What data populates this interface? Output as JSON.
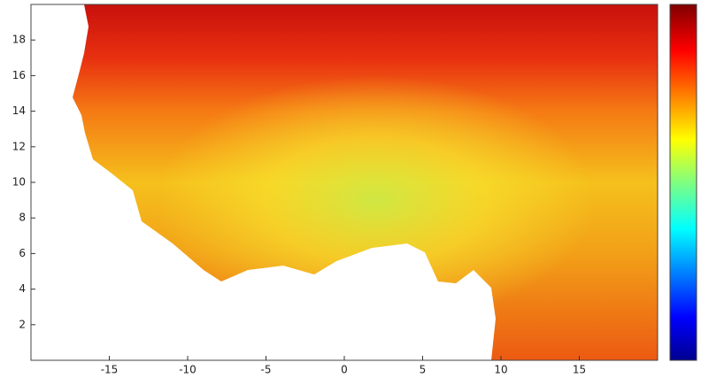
{
  "map": {
    "xlim": [
      -20,
      20
    ],
    "ylim": [
      0,
      20
    ],
    "xticks": [
      -15,
      -10,
      -5,
      0,
      5,
      10,
      15
    ],
    "yticks": [
      2,
      4,
      6,
      8,
      10,
      12,
      14,
      16,
      18
    ]
  }
}
